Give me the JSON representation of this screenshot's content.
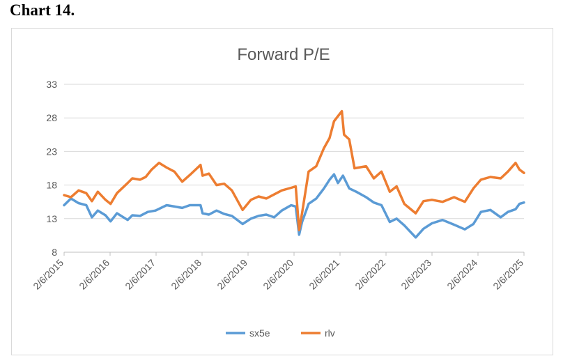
{
  "page": {
    "heading": "Chart 14."
  },
  "chart_data": {
    "type": "line",
    "title": "Forward P/E",
    "xlabel": "",
    "ylabel": "",
    "ylim": [
      8,
      33
    ],
    "yticks": [
      8,
      13,
      18,
      23,
      28,
      33
    ],
    "xlim": [
      "2015-02-06",
      "2025-02-06"
    ],
    "xtick_labels": [
      "2/6/2015",
      "2/6/2016",
      "2/6/2017",
      "2/6/2018",
      "2/6/2019",
      "2/6/2020",
      "2/6/2021",
      "2/6/2022",
      "2/6/2023",
      "2/6/2024",
      "2/6/2025"
    ],
    "grid": "horizontal",
    "legend_position": "bottom",
    "series": [
      {
        "name": "sx5e",
        "color": "#5B9BD5",
        "points": [
          [
            "2015-02-06",
            15.0
          ],
          [
            "2015-04-01",
            16.0
          ],
          [
            "2015-06-01",
            15.3
          ],
          [
            "2015-08-01",
            15.0
          ],
          [
            "2015-09-15",
            13.2
          ],
          [
            "2015-11-01",
            14.2
          ],
          [
            "2016-01-01",
            13.5
          ],
          [
            "2016-02-10",
            12.6
          ],
          [
            "2016-04-01",
            13.8
          ],
          [
            "2016-06-25",
            12.8
          ],
          [
            "2016-08-01",
            13.5
          ],
          [
            "2016-10-01",
            13.4
          ],
          [
            "2016-12-01",
            14.0
          ],
          [
            "2017-02-01",
            14.2
          ],
          [
            "2017-05-01",
            15.0
          ],
          [
            "2017-07-01",
            14.8
          ],
          [
            "2017-09-01",
            14.6
          ],
          [
            "2017-11-01",
            15.0
          ],
          [
            "2018-01-25",
            15.0
          ],
          [
            "2018-02-10",
            13.8
          ],
          [
            "2018-04-01",
            13.6
          ],
          [
            "2018-06-01",
            14.2
          ],
          [
            "2018-08-01",
            13.7
          ],
          [
            "2018-10-01",
            13.4
          ],
          [
            "2018-12-25",
            12.2
          ],
          [
            "2019-03-01",
            13.0
          ],
          [
            "2019-05-01",
            13.4
          ],
          [
            "2019-07-01",
            13.6
          ],
          [
            "2019-09-01",
            13.2
          ],
          [
            "2019-11-01",
            14.2
          ],
          [
            "2020-01-15",
            15.0
          ],
          [
            "2020-02-20",
            14.8
          ],
          [
            "2020-03-18",
            10.6
          ],
          [
            "2020-04-10",
            12.5
          ],
          [
            "2020-06-01",
            15.2
          ],
          [
            "2020-08-01",
            16.0
          ],
          [
            "2020-10-01",
            17.5
          ],
          [
            "2020-11-15",
            18.8
          ],
          [
            "2020-12-20",
            19.6
          ],
          [
            "2021-01-20",
            18.3
          ],
          [
            "2021-03-01",
            19.4
          ],
          [
            "2021-04-20",
            17.5
          ],
          [
            "2021-06-15",
            17.0
          ],
          [
            "2021-09-01",
            16.2
          ],
          [
            "2021-11-01",
            15.4
          ],
          [
            "2022-01-01",
            15.0
          ],
          [
            "2022-03-08",
            12.5
          ],
          [
            "2022-05-01",
            13.0
          ],
          [
            "2022-07-01",
            12.0
          ],
          [
            "2022-09-30",
            10.2
          ],
          [
            "2022-12-01",
            11.5
          ],
          [
            "2023-02-06",
            12.3
          ],
          [
            "2023-05-01",
            12.8
          ],
          [
            "2023-08-01",
            12.1
          ],
          [
            "2023-10-25",
            11.4
          ],
          [
            "2024-01-01",
            12.2
          ],
          [
            "2024-03-01",
            14.0
          ],
          [
            "2024-05-15",
            14.3
          ],
          [
            "2024-08-05",
            13.2
          ],
          [
            "2024-10-01",
            14.0
          ],
          [
            "2024-12-01",
            14.4
          ],
          [
            "2025-01-01",
            15.2
          ],
          [
            "2025-02-06",
            15.4
          ]
        ]
      },
      {
        "name": "rlv",
        "color": "#ED7D31",
        "points": [
          [
            "2015-02-06",
            16.5
          ],
          [
            "2015-04-01",
            16.2
          ],
          [
            "2015-06-01",
            17.2
          ],
          [
            "2015-08-01",
            16.8
          ],
          [
            "2015-09-15",
            15.6
          ],
          [
            "2015-11-01",
            17.0
          ],
          [
            "2016-01-01",
            15.8
          ],
          [
            "2016-02-10",
            15.2
          ],
          [
            "2016-04-01",
            16.8
          ],
          [
            "2016-06-25",
            18.3
          ],
          [
            "2016-08-01",
            19.0
          ],
          [
            "2016-10-01",
            18.8
          ],
          [
            "2016-11-15",
            19.2
          ],
          [
            "2017-01-01",
            20.3
          ],
          [
            "2017-03-01",
            21.3
          ],
          [
            "2017-05-01",
            20.6
          ],
          [
            "2017-07-01",
            20.0
          ],
          [
            "2017-09-01",
            18.5
          ],
          [
            "2017-11-01",
            19.5
          ],
          [
            "2018-01-25",
            21.0
          ],
          [
            "2018-02-10",
            19.4
          ],
          [
            "2018-04-01",
            19.7
          ],
          [
            "2018-06-01",
            18.0
          ],
          [
            "2018-08-01",
            18.2
          ],
          [
            "2018-10-01",
            17.2
          ],
          [
            "2018-12-25",
            14.3
          ],
          [
            "2019-03-01",
            15.8
          ],
          [
            "2019-05-01",
            16.3
          ],
          [
            "2019-07-01",
            16.0
          ],
          [
            "2019-09-01",
            16.6
          ],
          [
            "2019-11-01",
            17.2
          ],
          [
            "2020-01-15",
            17.6
          ],
          [
            "2020-02-20",
            17.8
          ],
          [
            "2020-03-18",
            11.3
          ],
          [
            "2020-04-10",
            13.8
          ],
          [
            "2020-06-01",
            20.0
          ],
          [
            "2020-08-01",
            20.8
          ],
          [
            "2020-10-01",
            23.5
          ],
          [
            "2020-11-15",
            25.0
          ],
          [
            "2020-12-20",
            27.5
          ],
          [
            "2021-02-20",
            29.0
          ],
          [
            "2021-03-10",
            25.5
          ],
          [
            "2021-04-20",
            24.8
          ],
          [
            "2021-06-01",
            20.5
          ],
          [
            "2021-09-01",
            20.8
          ],
          [
            "2021-11-01",
            19.0
          ],
          [
            "2022-01-01",
            20.0
          ],
          [
            "2022-03-08",
            17.0
          ],
          [
            "2022-05-01",
            17.8
          ],
          [
            "2022-07-01",
            15.2
          ],
          [
            "2022-09-30",
            13.8
          ],
          [
            "2022-12-01",
            15.6
          ],
          [
            "2023-02-06",
            15.8
          ],
          [
            "2023-05-01",
            15.5
          ],
          [
            "2023-08-01",
            16.2
          ],
          [
            "2023-10-25",
            15.5
          ],
          [
            "2024-01-01",
            17.5
          ],
          [
            "2024-03-01",
            18.8
          ],
          [
            "2024-05-15",
            19.2
          ],
          [
            "2024-08-05",
            19.0
          ],
          [
            "2024-10-01",
            20.0
          ],
          [
            "2024-12-01",
            21.3
          ],
          [
            "2025-01-01",
            20.3
          ],
          [
            "2025-02-06",
            19.8
          ]
        ]
      }
    ]
  }
}
